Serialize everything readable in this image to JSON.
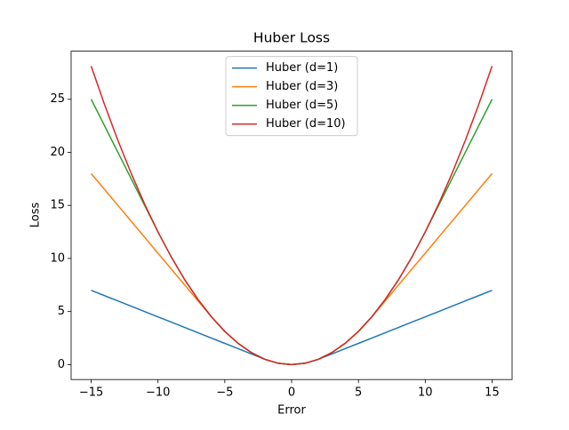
{
  "chart_data": {
    "type": "line",
    "title": "Huber Loss",
    "x_label": "Error",
    "y_label": "Loss",
    "x": [
      -15,
      -14,
      -13,
      -12,
      -11,
      -10,
      -9,
      -8,
      -7,
      -6,
      -5,
      -4,
      -3,
      -2,
      -1,
      0,
      1,
      2,
      3,
      4,
      5,
      6,
      7,
      8,
      9,
      10,
      11,
      12,
      13,
      14,
      15
    ],
    "series": [
      {
        "name": "Huber (d=1)",
        "color": "#1f77b4",
        "values": [
          7,
          6.5,
          6,
          5.5,
          5,
          4.5,
          4,
          3.5,
          3,
          2.5,
          2,
          1.5,
          1,
          0.5,
          0.125,
          0,
          0.125,
          0.5,
          1,
          1.5,
          2,
          2.5,
          3,
          3.5,
          4,
          4.5,
          5,
          5.5,
          6,
          6.5,
          7
        ]
      },
      {
        "name": "Huber (d=3)",
        "color": "#ff7f0e",
        "values": [
          18,
          16.5,
          15,
          13.5,
          12,
          10.5,
          9,
          7.5,
          6,
          4.5,
          3.125,
          2,
          1.125,
          0.5,
          0.125,
          0,
          0.125,
          0.5,
          1.125,
          2,
          3.125,
          4.5,
          6,
          7.5,
          9,
          10.5,
          12,
          13.5,
          15,
          16.5,
          18
        ]
      },
      {
        "name": "Huber (d=5)",
        "color": "#2ca02c",
        "values": [
          25,
          22.5,
          20,
          17.5,
          15,
          12.5,
          10.125,
          8,
          6.125,
          4.5,
          3.125,
          2,
          1.125,
          0.5,
          0.125,
          0,
          0.125,
          0.5,
          1.125,
          2,
          3.125,
          4.5,
          6.125,
          8,
          10.125,
          12.5,
          15,
          17.5,
          20,
          22.5,
          25
        ]
      },
      {
        "name": "Huber (d=10)",
        "color": "#d62728",
        "values": [
          28.125,
          24.5,
          21.125,
          18,
          15.125,
          12.5,
          10.125,
          8,
          6.125,
          4.5,
          3.125,
          2,
          1.125,
          0.5,
          0.125,
          0,
          0.125,
          0.5,
          1.125,
          2,
          3.125,
          4.5,
          6.125,
          8,
          10.125,
          12.5,
          15.125,
          18,
          21.125,
          24.5,
          28.125
        ]
      }
    ],
    "xlim": [
      -16.5,
      16.5
    ],
    "ylim": [
      -1.40625,
      29.53125
    ],
    "xticks": [
      {
        "value": -15,
        "label": "−15"
      },
      {
        "value": -10,
        "label": "−10"
      },
      {
        "value": -5,
        "label": "−5"
      },
      0,
      5,
      10,
      15
    ],
    "yticks": [
      0,
      5,
      10,
      15,
      20,
      25
    ],
    "legend": "upper center"
  }
}
